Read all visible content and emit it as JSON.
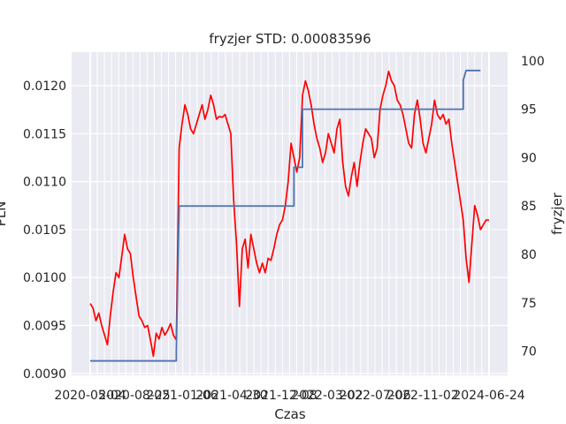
{
  "chart_data": {
    "type": "line",
    "title": "fryzjer STD: 0.00083596",
    "xlabel": "Czas",
    "ylabel_left": "PLN",
    "ylabel_right": "fryzjer",
    "x_ticks": [
      "2020-05-04",
      "2020-08-25",
      "2021-01-06",
      "2021-04-30",
      "2021-12-08",
      "2022-03-02",
      "2022-07-06",
      "2022-11-02",
      "2024-06-24"
    ],
    "y_left_ticks": [
      "0.0090",
      "0.0095",
      "0.0100",
      "0.0105",
      "0.0110",
      "0.0115",
      "0.0120"
    ],
    "y_right_ticks": [
      "70",
      "75",
      "80",
      "85",
      "90",
      "95",
      "100"
    ],
    "y_left_lim": [
      0.00898,
      0.01235
    ],
    "y_right_lim": [
      67.5,
      100.9
    ],
    "grid": true,
    "series": [
      {
        "axis": "left",
        "color": "#ff0000",
        "points": [
          [
            0,
            0.00973
          ],
          [
            1,
            0.00968
          ],
          [
            2,
            0.00955
          ],
          [
            3,
            0.00963
          ],
          [
            4,
            0.0095
          ],
          [
            5,
            0.0094
          ],
          [
            6,
            0.0093
          ],
          [
            7,
            0.0096
          ],
          [
            8,
            0.00985
          ],
          [
            9,
            0.01005
          ],
          [
            10,
            0.01
          ],
          [
            11,
            0.01022
          ],
          [
            12,
            0.01045
          ],
          [
            13,
            0.0103
          ],
          [
            14,
            0.01025
          ],
          [
            15,
            0.01
          ],
          [
            16,
            0.0098
          ],
          [
            17,
            0.0096
          ],
          [
            18,
            0.00955
          ],
          [
            19,
            0.00948
          ],
          [
            20,
            0.0095
          ],
          [
            21,
            0.00935
          ],
          [
            22,
            0.00918
          ],
          [
            23,
            0.00942
          ],
          [
            24,
            0.00936
          ],
          [
            25,
            0.00948
          ],
          [
            26,
            0.0094
          ],
          [
            27,
            0.00945
          ],
          [
            28,
            0.00952
          ],
          [
            29,
            0.0094
          ],
          [
            30,
            0.00935
          ],
          [
            31,
            0.01135
          ],
          [
            32,
            0.0116
          ],
          [
            33,
            0.0118
          ],
          [
            34,
            0.0117
          ],
          [
            35,
            0.01155
          ],
          [
            36,
            0.0115
          ],
          [
            37,
            0.0116
          ],
          [
            38,
            0.0117
          ],
          [
            39,
            0.0118
          ],
          [
            40,
            0.01165
          ],
          [
            41,
            0.01175
          ],
          [
            42,
            0.0119
          ],
          [
            43,
            0.0118
          ],
          [
            44,
            0.01165
          ],
          [
            45,
            0.01168
          ],
          [
            46,
            0.01167
          ],
          [
            47,
            0.0117
          ],
          [
            48,
            0.0116
          ],
          [
            49,
            0.0115
          ],
          [
            50,
            0.0108
          ],
          [
            51,
            0.01035
          ],
          [
            52,
            0.0097
          ],
          [
            53,
            0.0103
          ],
          [
            54,
            0.0104
          ],
          [
            55,
            0.0101
          ],
          [
            56,
            0.01045
          ],
          [
            57,
            0.0103
          ],
          [
            58,
            0.01015
          ],
          [
            59,
            0.01005
          ],
          [
            60,
            0.01015
          ],
          [
            61,
            0.01005
          ],
          [
            62,
            0.0102
          ],
          [
            63,
            0.01018
          ],
          [
            64,
            0.0103
          ],
          [
            65,
            0.01045
          ],
          [
            66,
            0.01055
          ],
          [
            67,
            0.0106
          ],
          [
            68,
            0.01075
          ],
          [
            69,
            0.011
          ],
          [
            70,
            0.0114
          ],
          [
            71,
            0.01125
          ],
          [
            72,
            0.0111
          ],
          [
            73,
            0.01125
          ],
          [
            74,
            0.0119
          ],
          [
            75,
            0.01205
          ],
          [
            76,
            0.01195
          ],
          [
            77,
            0.0118
          ],
          [
            78,
            0.0116
          ],
          [
            79,
            0.01145
          ],
          [
            80,
            0.01135
          ],
          [
            81,
            0.0112
          ],
          [
            82,
            0.0113
          ],
          [
            83,
            0.0115
          ],
          [
            84,
            0.0114
          ],
          [
            85,
            0.0113
          ],
          [
            86,
            0.01155
          ],
          [
            87,
            0.01165
          ],
          [
            88,
            0.0112
          ],
          [
            89,
            0.01095
          ],
          [
            90,
            0.01085
          ],
          [
            91,
            0.01105
          ],
          [
            92,
            0.0112
          ],
          [
            93,
            0.01095
          ],
          [
            94,
            0.0112
          ],
          [
            95,
            0.0114
          ],
          [
            96,
            0.01155
          ],
          [
            97,
            0.0115
          ],
          [
            98,
            0.01145
          ],
          [
            99,
            0.01125
          ],
          [
            100,
            0.01135
          ],
          [
            101,
            0.01175
          ],
          [
            102,
            0.0119
          ],
          [
            103,
            0.012
          ],
          [
            104,
            0.01215
          ],
          [
            105,
            0.01205
          ],
          [
            106,
            0.012
          ],
          [
            107,
            0.01185
          ],
          [
            108,
            0.0118
          ],
          [
            109,
            0.0117
          ],
          [
            110,
            0.01155
          ],
          [
            111,
            0.0114
          ],
          [
            112,
            0.01135
          ],
          [
            113,
            0.0117
          ],
          [
            114,
            0.01185
          ],
          [
            115,
            0.01165
          ],
          [
            116,
            0.0114
          ],
          [
            117,
            0.0113
          ],
          [
            118,
            0.01145
          ],
          [
            119,
            0.0116
          ],
          [
            120,
            0.01185
          ],
          [
            121,
            0.0117
          ],
          [
            122,
            0.01165
          ],
          [
            123,
            0.0117
          ],
          [
            124,
            0.0116
          ],
          [
            125,
            0.01165
          ],
          [
            126,
            0.0114
          ],
          [
            127,
            0.0112
          ],
          [
            128,
            0.011
          ],
          [
            129,
            0.0108
          ],
          [
            130,
            0.0106
          ],
          [
            131,
            0.0102
          ],
          [
            132,
            0.00995
          ],
          [
            133,
            0.01035
          ],
          [
            134,
            0.01075
          ],
          [
            135,
            0.01065
          ],
          [
            136,
            0.0105
          ],
          [
            137,
            0.01055
          ],
          [
            138,
            0.0106
          ],
          [
            139,
            0.0106
          ]
        ]
      },
      {
        "axis": "right",
        "color": "#4c72b0",
        "points": [
          [
            0,
            69.0
          ],
          [
            30,
            69.0
          ],
          [
            30,
            70.0
          ],
          [
            31,
            85.0
          ],
          [
            71,
            85.0
          ],
          [
            71,
            89.0
          ],
          [
            74,
            89.0
          ],
          [
            74,
            95.0
          ],
          [
            130,
            95.0
          ],
          [
            130,
            98.0
          ],
          [
            131,
            99.0
          ],
          [
            136,
            99.0
          ]
        ]
      }
    ]
  }
}
